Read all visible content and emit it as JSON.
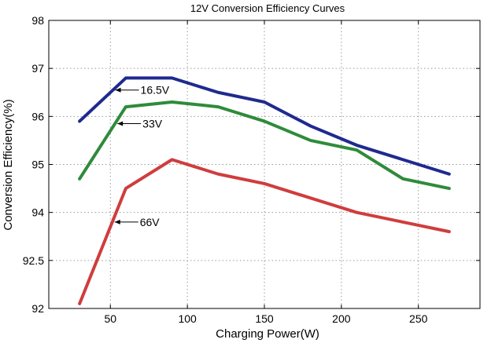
{
  "chart_data": {
    "type": "line",
    "title": "12V Conversion Efficiency Curves",
    "xlabel": "Charging Power(W)",
    "ylabel": "Conversion Efficiency(%)",
    "xlim": [
      10,
      290
    ],
    "x_ticks": [
      50,
      100,
      150,
      200,
      250
    ],
    "y_ticks": [
      {
        "label": "92",
        "pos": 0
      },
      {
        "label": "92.5",
        "pos": 1
      },
      {
        "label": "94",
        "pos": 2
      },
      {
        "label": "95",
        "pos": 3
      },
      {
        "label": "96",
        "pos": 4
      },
      {
        "label": "97",
        "pos": 5
      },
      {
        "label": "98",
        "pos": 6
      }
    ],
    "y_note": "Tick labels printed as shown (92, 92.5, 94, 95, 96, 97, 98) at equal spacing; values below are in tick-position units 0-6.",
    "grid": true,
    "series": [
      {
        "name": "16.5V",
        "color": "#1f2a8f",
        "x": [
          30,
          60,
          90,
          120,
          150,
          180,
          210,
          240,
          270
        ],
        "y": [
          3.9,
          4.8,
          4.8,
          4.5,
          4.3,
          3.8,
          3.4,
          3.1,
          2.8
        ]
      },
      {
        "name": "33V",
        "color": "#2e8b3a",
        "x": [
          30,
          60,
          90,
          120,
          150,
          180,
          210,
          240,
          270
        ],
        "y": [
          2.7,
          4.2,
          4.3,
          4.2,
          3.9,
          3.5,
          3.3,
          2.7,
          2.5
        ]
      },
      {
        "name": "66V",
        "color": "#cf3d3d",
        "x": [
          30,
          60,
          90,
          120,
          150,
          180,
          210,
          240,
          270
        ],
        "y": [
          0.1,
          2.5,
          3.1,
          2.8,
          2.6,
          2.3,
          2.0,
          1.8,
          1.6
        ]
      }
    ],
    "annotations": [
      {
        "text": "16.5V",
        "series": "16.5V",
        "point_x": 60
      },
      {
        "text": "33V",
        "series": "33V",
        "point_x": 60
      },
      {
        "text": "66V",
        "series": "66V",
        "point_x": 60
      }
    ]
  }
}
